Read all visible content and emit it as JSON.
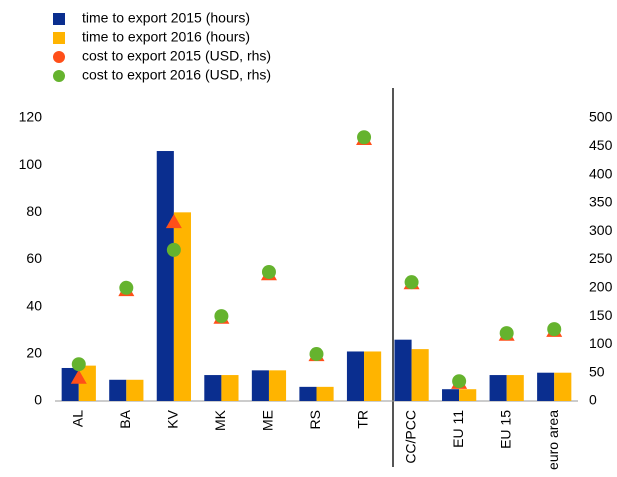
{
  "chart_data": {
    "type": "bar",
    "categories": [
      "AL",
      "BA",
      "KV",
      "MK",
      "ME",
      "RS",
      "TR",
      "CC/PCC",
      "EU 11",
      "EU 15",
      "euro area"
    ],
    "series": [
      {
        "name": "time to export 2015 (hours)",
        "color": "#0a2e8f",
        "values": [
          14,
          9,
          106,
          11,
          13,
          6,
          21,
          26,
          5,
          11,
          12
        ]
      },
      {
        "name": "time to export 2016 (hours)",
        "color": "#ffb400",
        "values": [
          15,
          9,
          80,
          11,
          13,
          6,
          21,
          22,
          5,
          11,
          12
        ]
      },
      {
        "name": "cost to export 2015 (USD, rhs)",
        "color": "#ff4f19",
        "axis": "y2",
        "marker": "triangle",
        "values": [
          41,
          196,
          316,
          147,
          224,
          81,
          463,
          208,
          32,
          117,
          124
        ]
      },
      {
        "name": "cost to export 2016 (USD, rhs)",
        "color": "#65b32e",
        "axis": "y2",
        "marker": "circle",
        "values": [
          65,
          200,
          267,
          150,
          228,
          83,
          466,
          210,
          35,
          120,
          127
        ]
      }
    ],
    "ylim": [
      0,
      120
    ],
    "yticks": [
      0,
      20,
      40,
      60,
      80,
      100,
      120
    ],
    "y2lim": [
      0,
      500
    ],
    "y2ticks": [
      0,
      50,
      100,
      150,
      200,
      250,
      300,
      350,
      400,
      450,
      500
    ],
    "grid": false,
    "legend": "top-left"
  }
}
